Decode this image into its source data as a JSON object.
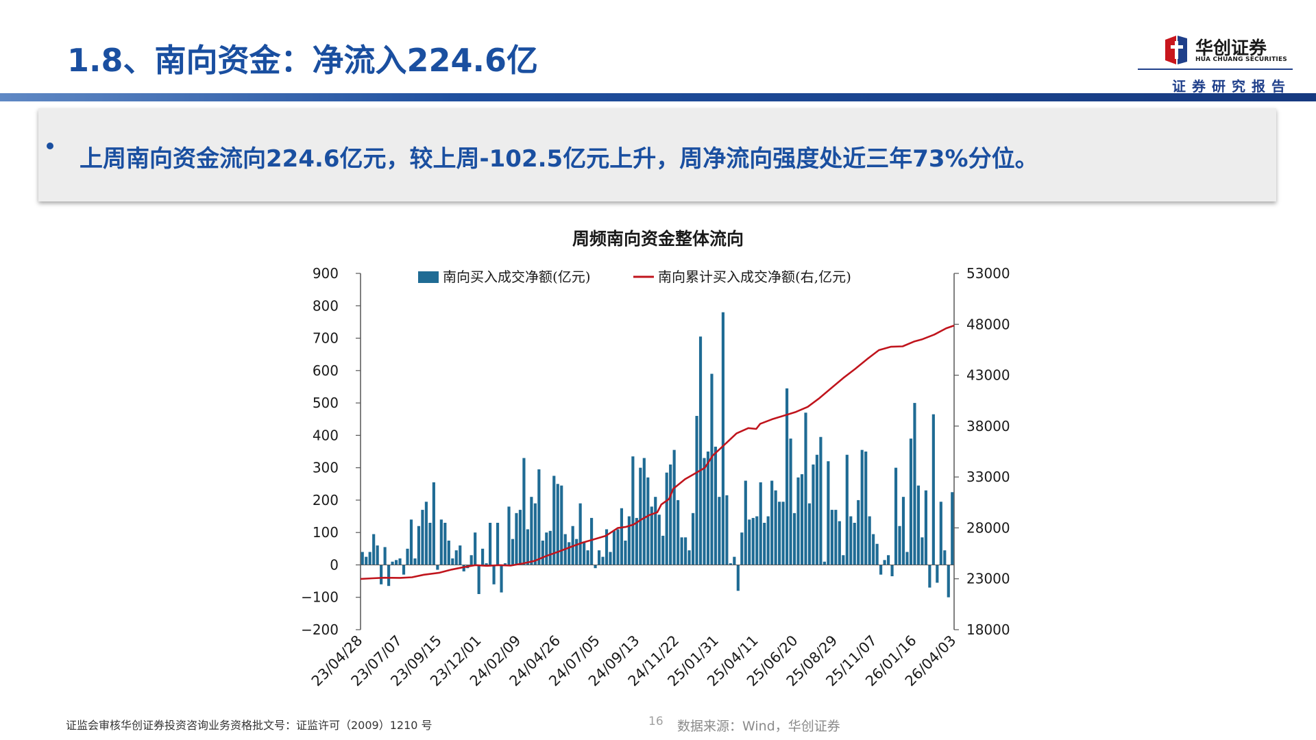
{
  "header": {
    "title": "1.8、南向资金：净流入224.6亿",
    "logo_name": "华创证券",
    "logo_sub": "HUA CHUANG SECURITIES",
    "report_label": "证券研究报告"
  },
  "summary": {
    "bullet": "上周南向资金流向224.6亿元，较上周-102.5亿元上升，周净流向强度处近三年73%分位。"
  },
  "colors": {
    "title": "#1a4fa0",
    "bar": "#1f6b94",
    "line": "#c0141c",
    "header_band": "#16397f"
  },
  "chart_data": {
    "type": "bar",
    "title": "周频南向资金整体流向",
    "x_tick_labels": [
      "23/04/28",
      "23/07/07",
      "23/09/15",
      "23/12/01",
      "24/02/09",
      "24/04/26",
      "24/07/05",
      "24/09/13",
      "24/11/22",
      "25/01/31",
      "25/04/11",
      "25/06/20",
      "25/08/29",
      "25/11/07",
      "26/01/16",
      "26/04/03"
    ],
    "ylim_left": [
      -200,
      900
    ],
    "yticks_left": [
      -200,
      -100,
      0,
      100,
      200,
      300,
      400,
      500,
      600,
      700,
      800,
      900
    ],
    "ylim_right": [
      18000,
      53000
    ],
    "yticks_right": [
      18000,
      23000,
      28000,
      33000,
      38000,
      43000,
      48000,
      53000
    ],
    "grid": false,
    "legend": "top",
    "series": [
      {
        "name": "南向买入成交净额(亿元)",
        "axis": "left",
        "type": "bar",
        "values": [
          40,
          25,
          40,
          95,
          60,
          -60,
          55,
          -65,
          10,
          15,
          20,
          -30,
          50,
          140,
          20,
          120,
          170,
          195,
          130,
          255,
          -15,
          140,
          130,
          75,
          20,
          45,
          60,
          -20,
          -10,
          30,
          100,
          -90,
          50,
          5,
          130,
          -60,
          130,
          -85,
          5,
          180,
          80,
          160,
          170,
          330,
          110,
          210,
          190,
          295,
          75,
          100,
          105,
          275,
          250,
          245,
          95,
          70,
          120,
          80,
          190,
          70,
          45,
          145,
          -10,
          45,
          25,
          110,
          40,
          105,
          110,
          175,
          75,
          150,
          335,
          145,
          300,
          330,
          270,
          180,
          210,
          155,
          90,
          285,
          310,
          355,
          200,
          85,
          85,
          45,
          160,
          460,
          705,
          330,
          350,
          590,
          365,
          210,
          780,
          215,
          5,
          25,
          -80,
          100,
          260,
          140,
          145,
          150,
          255,
          130,
          150,
          260,
          230,
          195,
          195,
          545,
          390,
          160,
          270,
          280,
          470,
          190,
          310,
          340,
          395,
          10,
          320,
          170,
          170,
          135,
          30,
          340,
          150,
          130,
          200,
          355,
          350,
          150,
          95,
          65,
          -30,
          15,
          30,
          -35,
          300,
          120,
          210,
          40,
          390,
          500,
          245,
          85,
          230,
          -70,
          465,
          -55,
          195,
          45,
          -100,
          224.6
        ]
      },
      {
        "name": "南向累计买入成交净额(右,亿元)",
        "axis": "right",
        "type": "line",
        "points": [
          [
            0,
            22990
          ],
          [
            0.03,
            23050
          ],
          [
            0.06,
            23100
          ],
          [
            0.1,
            23090
          ],
          [
            0.13,
            23150
          ],
          [
            0.16,
            23400
          ],
          [
            0.2,
            23600
          ],
          [
            0.23,
            23900
          ],
          [
            0.26,
            24140
          ],
          [
            0.29,
            24340
          ],
          [
            0.32,
            24270
          ],
          [
            0.35,
            24340
          ],
          [
            0.38,
            24300
          ],
          [
            0.41,
            24500
          ],
          [
            0.44,
            24760
          ],
          [
            0.47,
            25250
          ],
          [
            0.5,
            25660
          ],
          [
            0.53,
            26110
          ],
          [
            0.56,
            26540
          ],
          [
            0.59,
            26880
          ],
          [
            0.62,
            27220
          ],
          [
            0.65,
            27990
          ],
          [
            0.67,
            28090
          ],
          [
            0.69,
            28330
          ],
          [
            0.71,
            28830
          ],
          [
            0.73,
            29260
          ],
          [
            0.75,
            29530
          ],
          [
            0.76,
            30300
          ],
          [
            0.78,
            30850
          ],
          [
            0.79,
            31830
          ],
          [
            0.82,
            32780
          ],
          [
            0.84,
            33230
          ],
          [
            0.87,
            33900
          ],
          [
            0.89,
            35100
          ],
          [
            0.92,
            36180
          ],
          [
            0.95,
            37280
          ],
          [
            0.98,
            37800
          ],
          [
            1.0,
            37720
          ],
          [
            1.01,
            38220
          ],
          [
            1.04,
            38670
          ],
          [
            1.07,
            39030
          ],
          [
            1.1,
            39390
          ],
          [
            1.13,
            39890
          ],
          [
            1.16,
            40760
          ],
          [
            1.19,
            41740
          ],
          [
            1.22,
            42720
          ],
          [
            1.25,
            43620
          ],
          [
            1.28,
            44570
          ],
          [
            1.31,
            45460
          ],
          [
            1.34,
            45790
          ],
          [
            1.37,
            45830
          ],
          [
            1.4,
            46320
          ],
          [
            1.42,
            46530
          ],
          [
            1.45,
            46990
          ],
          [
            1.48,
            47610
          ],
          [
            1.5,
            47880
          ]
        ]
      }
    ],
    "source": "数据来源：Wind，华创证券"
  },
  "footer": {
    "cert": "证监会审核华创证券投资咨询业务资格批文号：证监许可（2009）1210 号",
    "page_number": "16",
    "source": "数据来源：Wind，华创证券"
  }
}
